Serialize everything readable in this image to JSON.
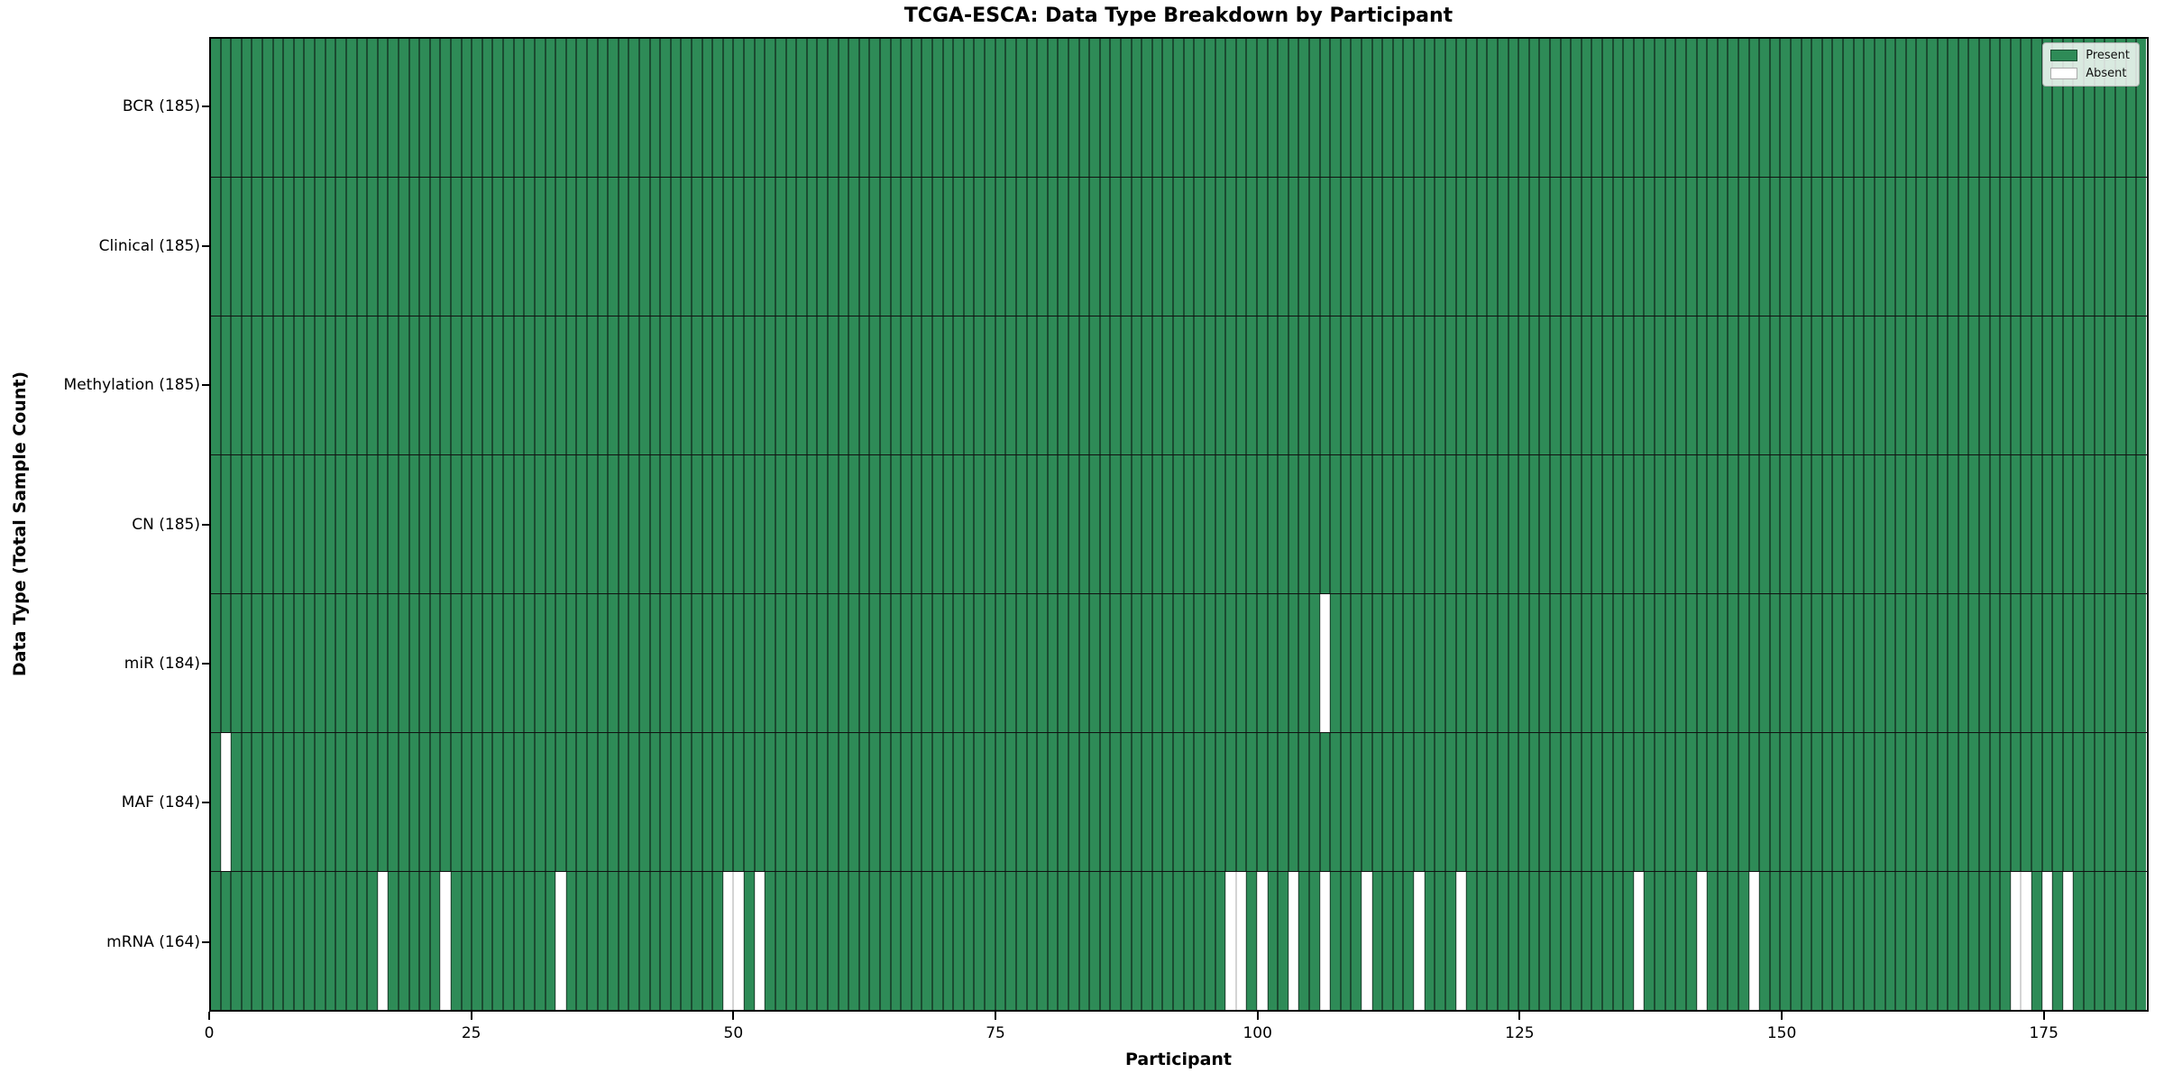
{
  "chart_data": {
    "type": "heatmap",
    "title": "TCGA-ESCA: Data Type Breakdown by Participant",
    "xlabel": "Participant",
    "ylabel": "Data Type (Total Sample Count)",
    "x_ticks": [
      0,
      25,
      50,
      75,
      100,
      125,
      150,
      175
    ],
    "n_participants": 185,
    "x_axis_range": [
      0,
      185
    ],
    "grid": false,
    "legend_position": "upper right",
    "legend": {
      "present_label": "Present",
      "absent_label": "Absent"
    },
    "colors": {
      "present": "#2e8b57",
      "absent": "#ffffff",
      "present_edge": "#1b4b31",
      "absent_edge": "#d4d4d4"
    },
    "rows": [
      {
        "label": "BCR (185)",
        "name": "BCR",
        "present_count": 185,
        "absent_participants": []
      },
      {
        "label": "Clinical (185)",
        "name": "Clinical",
        "present_count": 185,
        "absent_participants": []
      },
      {
        "label": "Methylation (185)",
        "name": "Methylation",
        "present_count": 185,
        "absent_participants": []
      },
      {
        "label": "CN (185)",
        "name": "CN",
        "present_count": 185,
        "absent_participants": []
      },
      {
        "label": "miR (184)",
        "name": "miR",
        "present_count": 184,
        "absent_participants": [
          106
        ]
      },
      {
        "label": "MAF (184)",
        "name": "MAF",
        "present_count": 184,
        "absent_participants": [
          1
        ]
      },
      {
        "label": "mRNA (164)",
        "name": "mRNA",
        "present_count": 164,
        "absent_participants": [
          16,
          22,
          33,
          49,
          50,
          52,
          97,
          98,
          100,
          103,
          106,
          110,
          115,
          119,
          136,
          142,
          147,
          172,
          173,
          175,
          177
        ]
      }
    ]
  }
}
